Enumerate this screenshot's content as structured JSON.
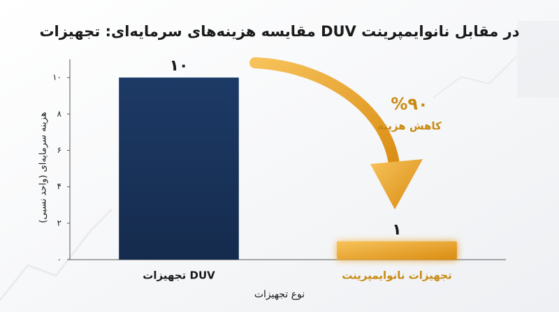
{
  "chart_data": {
    "type": "bar",
    "title": "مقایسه هزینه‌های سرمایه‌ای: تجهیزات DUV در مقابل نانوایمپرینت",
    "xlabel": "نوع تجهیزات",
    "ylabel": "هزینه سرمایه‌ای (واحد نسبی)",
    "categories": [
      "تجهیزات DUV",
      "تجهیزات نانوایمپرینت"
    ],
    "values": [
      10,
      1
    ],
    "value_labels": [
      "۱۰",
      "۱"
    ],
    "colors": [
      "#1d3a66",
      "#f0a42c"
    ],
    "ylim": [
      0,
      11
    ],
    "yticks": [
      {
        "value": 0,
        "label": "۰"
      },
      {
        "value": 2,
        "label": "۲"
      },
      {
        "value": 4,
        "label": "۴"
      },
      {
        "value": 6,
        "label": "۶"
      },
      {
        "value": 8,
        "label": "۸"
      },
      {
        "value": 10,
        "label": "۱۰"
      }
    ],
    "annotations": [
      "%۹۰",
      "کاهش هزینه"
    ],
    "grid": false
  }
}
